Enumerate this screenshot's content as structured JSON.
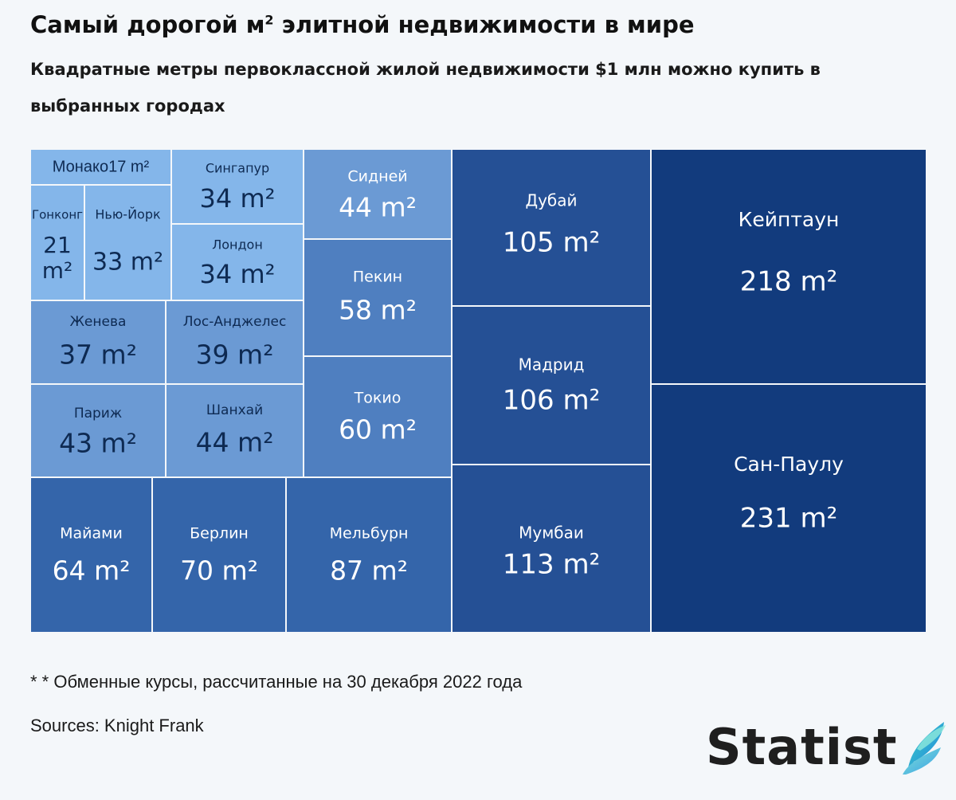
{
  "title": "Самый дорогой м",
  "title_sup": "2",
  "title_rest": " элитной недвижимости в мире",
  "subtitle": "Квадратные метры первоклассной жилой недвижимости $1 млн можно купить в выбранных городах",
  "note": "* * Обменные курсы, рассчитанные на 30 декабря 2022 года",
  "sources": "Sources: Knight Frank",
  "logo_text": "Statist",
  "logo_icon": "statista-wave-icon",
  "colors": {
    "light": "#84b6ea",
    "mid_light": "#6b9ad4",
    "mid": "#4f7fc0",
    "mid_dark": "#3465aa",
    "dark": "#255095",
    "darkest": "#123b7d",
    "text_dark": "#0e2a52",
    "text_light": "#ffffff"
  },
  "chart_data": {
    "type": "treemap",
    "title": "Самый дорогой м² элитной недвижимости в мире",
    "unit": "m²",
    "items": [
      {
        "city": "Монако",
        "value": 17,
        "label": "17 m²"
      },
      {
        "city": "Гонконг",
        "value": 21,
        "label": "21 m²"
      },
      {
        "city": "Нью-Йорк",
        "value": 33,
        "label": "33 m²"
      },
      {
        "city": "Сингапур",
        "value": 34,
        "label": "34 m²"
      },
      {
        "city": "Лондон",
        "value": 34,
        "label": "34 m²"
      },
      {
        "city": "Женева",
        "value": 37,
        "label": "37 m²"
      },
      {
        "city": "Лос-Анджелес",
        "value": 39,
        "label": "39 m²"
      },
      {
        "city": "Париж",
        "value": 43,
        "label": "43 m²"
      },
      {
        "city": "Шанхай",
        "value": 44,
        "label": "44 m²"
      },
      {
        "city": "Сидней",
        "value": 44,
        "label": "44 m²"
      },
      {
        "city": "Пекин",
        "value": 58,
        "label": "58 m²"
      },
      {
        "city": "Токио",
        "value": 60,
        "label": "60 m²"
      },
      {
        "city": "Майами",
        "value": 64,
        "label": "64 m²"
      },
      {
        "city": "Берлин",
        "value": 70,
        "label": "70 m²"
      },
      {
        "city": "Мельбурн",
        "value": 87,
        "label": "87 m²"
      },
      {
        "city": "Дубай",
        "value": 105,
        "label": "105 m²"
      },
      {
        "city": "Мадрид",
        "value": 106,
        "label": "106 m²"
      },
      {
        "city": "Мумбаи",
        "value": 113,
        "label": "113 m²"
      },
      {
        "city": "Кейптаун",
        "value": 218,
        "label": "218 m²"
      },
      {
        "city": "Сан-Паулу",
        "value": 231,
        "label": "231 m²"
      }
    ]
  }
}
